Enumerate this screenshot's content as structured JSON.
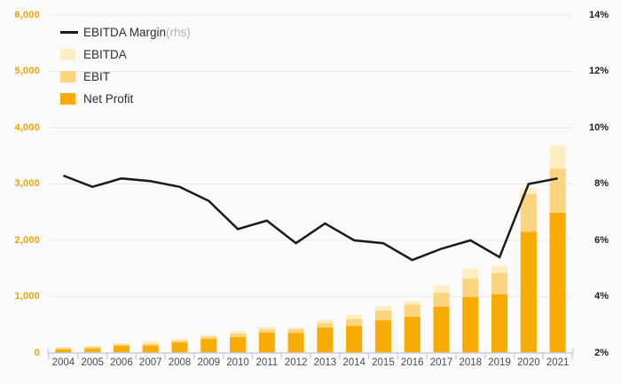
{
  "chart_data": {
    "type": "bar+line",
    "categories": [
      "2004",
      "2005",
      "2006",
      "2007",
      "2008",
      "2009",
      "2010",
      "2011",
      "2012",
      "2013",
      "2014",
      "2015",
      "2016",
      "2017",
      "2018",
      "2019",
      "2020",
      "2021"
    ],
    "series": [
      {
        "name": "EBITDA Margin (rhs)",
        "kind": "line",
        "axis": "right",
        "values": [
          8.3,
          7.9,
          8.2,
          8.1,
          7.9,
          7.4,
          6.4,
          6.7,
          5.9,
          6.6,
          6.0,
          5.9,
          5.3,
          5.7,
          6.0,
          5.4,
          8.0,
          8.2
        ]
      },
      {
        "name": "EBITDA",
        "kind": "bar",
        "axis": "left",
        "values": [
          110,
          125,
          175,
          210,
          255,
          320,
          390,
          460,
          450,
          590,
          680,
          830,
          920,
          1200,
          1500,
          1550,
          2930,
          3690
        ]
      },
      {
        "name": "EBIT",
        "kind": "bar",
        "axis": "left",
        "values": [
          90,
          110,
          155,
          160,
          220,
          290,
          340,
          420,
          420,
          530,
          600,
          750,
          860,
          1070,
          1320,
          1420,
          2820,
          3270
        ]
      },
      {
        "name": "Net Profit",
        "kind": "bar",
        "axis": "left",
        "values": [
          60,
          75,
          125,
          130,
          185,
          245,
          280,
          360,
          355,
          450,
          480,
          580,
          640,
          820,
          990,
          1040,
          2150,
          2490
        ]
      }
    ],
    "left_axis": {
      "min": 0,
      "max": 6000,
      "tick_step": 1000,
      "tick_labels": [
        "0",
        "1,000",
        "2,000",
        "3,000",
        "4,000",
        "5,000",
        "6,000"
      ]
    },
    "right_axis": {
      "min": 2,
      "max": 14,
      "tick_step": 2,
      "tick_labels": [
        "2%",
        "4%",
        "6%",
        "8%",
        "10%",
        "12%",
        "14%"
      ]
    },
    "grid": "horizontal",
    "legend_position": "top-left"
  },
  "legend": {
    "items": [
      {
        "label": "EBITDA Margin",
        "suffix": " (rhs)",
        "swatch": "line"
      },
      {
        "label": "EBITDA",
        "suffix": "",
        "swatch": "ebitda"
      },
      {
        "label": "EBIT",
        "suffix": "",
        "swatch": "ebit"
      },
      {
        "label": "Net Profit",
        "suffix": "",
        "swatch": "net-profit"
      }
    ]
  },
  "colors": {
    "background": "#fafafa",
    "gridline": "#e8e8e8",
    "axis": "#c6cce7",
    "line": "#1a1a1a",
    "bar_ebitda": "#fdedc3",
    "bar_ebit": "#fbd47f",
    "bar_net_profit": "#f8ab00",
    "left_labels": "#f6a200",
    "right_labels": "#1c1c1c",
    "x_labels": "#4b4b52",
    "legend_suffix": "#b4b4b4"
  }
}
